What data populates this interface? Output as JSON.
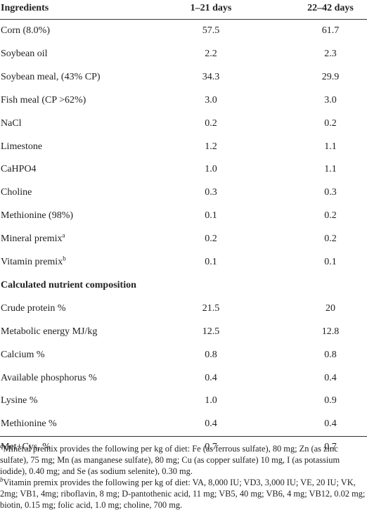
{
  "table": {
    "header": [
      "Ingredients",
      "1–21 days",
      "22–42 days"
    ],
    "rows": [
      {
        "cells": [
          "Corn (8.0%)",
          "57.5",
          "61.7"
        ]
      },
      {
        "cells": [
          "Soybean oil",
          "2.2",
          "2.3"
        ]
      },
      {
        "cells": [
          "Soybean meal, (43% CP)",
          "34.3",
          "29.9"
        ]
      },
      {
        "cells": [
          "Fish meal (CP >62%)",
          "3.0",
          "3.0"
        ]
      },
      {
        "cells": [
          "NaCl",
          "0.2",
          "0.2"
        ]
      },
      {
        "cells": [
          "Limestone",
          "1.2",
          "1.1"
        ]
      },
      {
        "cells": [
          "CaHPO4",
          "1.0",
          "1.1"
        ]
      },
      {
        "cells": [
          "Choline",
          "0.3",
          "0.3"
        ]
      },
      {
        "cells": [
          "Methionine (98%)",
          "0.1",
          "0.2"
        ]
      },
      {
        "cells": [
          "Mineral premix",
          "0.2",
          "0.2"
        ],
        "sup": "a"
      },
      {
        "cells": [
          "Vitamin premix",
          "0.1",
          "0.1"
        ],
        "sup": "b"
      },
      {
        "section": "Calculated nutrient composition"
      },
      {
        "cells": [
          "Crude protein %",
          "21.5",
          "20"
        ]
      },
      {
        "cells": [
          "Metabolic energy MJ/kg",
          "12.5",
          "12.8"
        ]
      },
      {
        "cells": [
          "Calcium %",
          "0.8",
          "0.8"
        ]
      },
      {
        "cells": [
          "Available phosphorus %",
          "0.4",
          "0.4"
        ]
      },
      {
        "cells": [
          "Lysine %",
          "1.0",
          "0.9"
        ]
      },
      {
        "cells": [
          "Methionine %",
          "0.4",
          "0.4"
        ]
      },
      {
        "cells": [
          "Met+Cys, %",
          "0.7",
          "0.7"
        ]
      }
    ],
    "footnotes": [
      {
        "mark": "a",
        "text": "Mineral premix provides the following per kg of diet: Fe (as ferrous sulfate), 80 mg; Zn (as zinc sulfate), 75 mg; Mn (as manganese sulfate), 80 mg; Cu (as copper sulfate) 10 mg, I (as potassium iodide), 0.40 mg; and Se (as sodium selenite), 0.30 mg."
      },
      {
        "mark": "b",
        "text": "Vitamin premix provides the following per kg of diet: VA, 8,000 IU; VD3, 3,000 IU; VE, 20 IU; VK, 2mg; VB1, 4mg; riboflavin, 8 mg; D-pantothenic acid, 11 mg; VB5, 40 mg; VB6, 4 mg; VB12, 0.02 mg; biotin, 0.15 mg; folic acid, 1.0 mg; choline, 700 mg."
      }
    ]
  }
}
